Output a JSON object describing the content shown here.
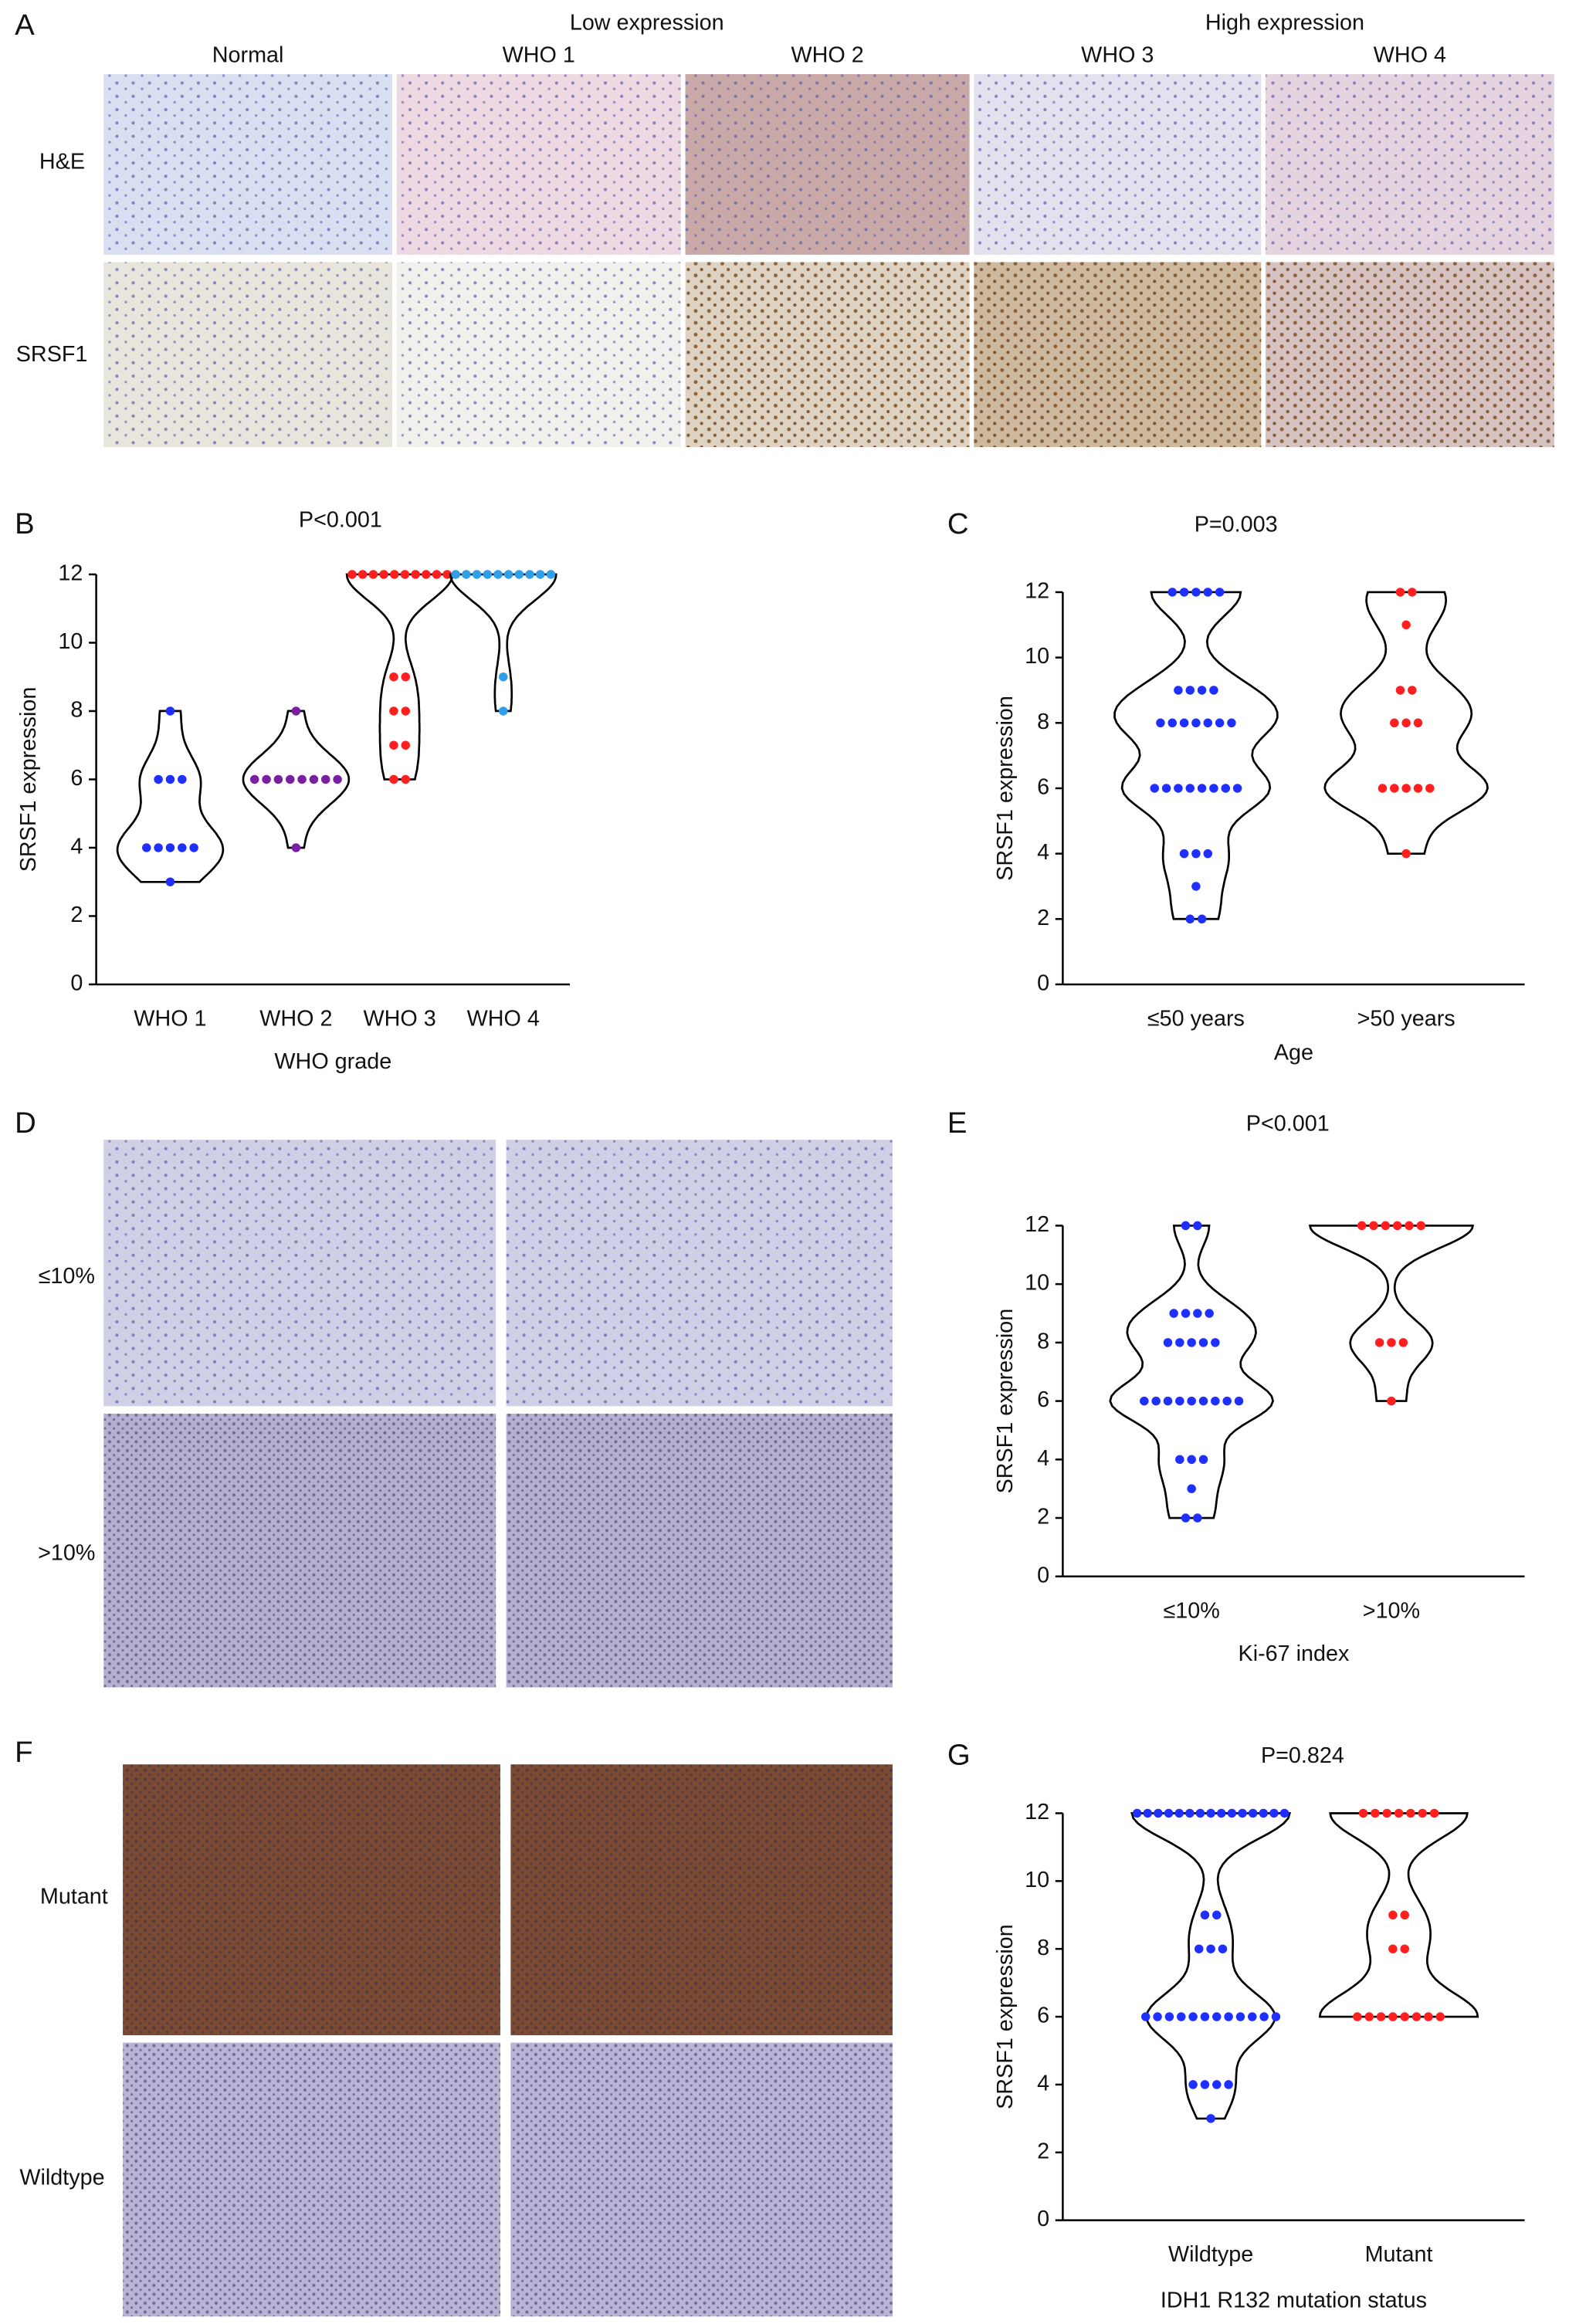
{
  "figure": {
    "panel_labels": [
      "A",
      "B",
      "C",
      "D",
      "E",
      "F",
      "G"
    ],
    "panel_a": {
      "group_labels": [
        "Low expression",
        "High expression"
      ],
      "columns": [
        "Normal",
        "WHO 1",
        "WHO 2",
        "WHO 3",
        "WHO 4"
      ],
      "rows": [
        "H&E",
        "SRSF1"
      ]
    },
    "panel_d": {
      "rows": [
        "≤10%",
        ">10%"
      ]
    },
    "panel_f": {
      "rows": [
        "Mutant",
        "Wildtype"
      ]
    }
  },
  "chart_data": [
    {
      "type": "violin",
      "title": "P<0.001",
      "x_label": "WHO grade",
      "y_label": "SRSF1 expression",
      "categories": [
        "WHO 1",
        "WHO 2",
        "WHO 3",
        "WHO 4"
      ],
      "colors": [
        "#1f2fff",
        "#7b1fa2",
        "#ff1f1f",
        "#2f9fe8"
      ],
      "points": [
        [
          8,
          6,
          6,
          6,
          4,
          4,
          4,
          4,
          4,
          3
        ],
        [
          8,
          6,
          6,
          6,
          6,
          6,
          6,
          6,
          6,
          4
        ],
        [
          12,
          12,
          12,
          12,
          12,
          12,
          12,
          12,
          12,
          12,
          9,
          9,
          8,
          8,
          7,
          7,
          6,
          6
        ],
        [
          12,
          12,
          12,
          12,
          12,
          12,
          12,
          12,
          12,
          12,
          9,
          8
        ]
      ],
      "ylim": [
        0,
        12
      ],
      "yticks": [
        0,
        2,
        4,
        6,
        8,
        10,
        12
      ]
    },
    {
      "type": "violin",
      "title": "P=0.003",
      "x_label": "Age",
      "y_label": "SRSF1 expression",
      "categories": [
        "≤50 years",
        ">50 years"
      ],
      "colors": [
        "#1f2fff",
        "#ff1f1f"
      ],
      "points": [
        [
          12,
          12,
          12,
          12,
          12,
          9,
          9,
          9,
          9,
          8,
          8,
          8,
          8,
          8,
          8,
          8,
          6,
          6,
          6,
          6,
          6,
          6,
          6,
          6,
          4,
          4,
          4,
          3,
          2,
          2
        ],
        [
          12,
          12,
          11,
          9,
          9,
          8,
          8,
          8,
          6,
          6,
          6,
          6,
          6,
          4
        ]
      ],
      "ylim": [
        0,
        12
      ],
      "yticks": [
        0,
        2,
        4,
        6,
        8,
        10,
        12
      ]
    },
    {
      "type": "violin",
      "title": "P<0.001",
      "x_label": "Ki-67 index",
      "y_label": "SRSF1 expression",
      "categories": [
        "≤10%",
        ">10%"
      ],
      "colors": [
        "#1f2fff",
        "#ff1f1f"
      ],
      "points": [
        [
          12,
          12,
          9,
          9,
          9,
          9,
          8,
          8,
          8,
          8,
          8,
          6,
          6,
          6,
          6,
          6,
          6,
          6,
          6,
          6,
          4,
          4,
          4,
          3,
          2,
          2
        ],
        [
          12,
          12,
          12,
          12,
          12,
          12,
          8,
          8,
          8,
          6
        ]
      ],
      "ylim": [
        0,
        12
      ],
      "yticks": [
        0,
        2,
        4,
        6,
        8,
        10,
        12
      ]
    },
    {
      "type": "violin",
      "title": "P=0.824",
      "x_label": "IDH1 R132 mutation status",
      "y_label": "SRSF1 expression",
      "categories": [
        "Wildtype",
        "Mutant"
      ],
      "colors": [
        "#1f2fff",
        "#ff1f1f"
      ],
      "points": [
        [
          12,
          12,
          12,
          12,
          12,
          12,
          12,
          12,
          12,
          12,
          12,
          12,
          12,
          12,
          12,
          9,
          9,
          8,
          8,
          8,
          6,
          6,
          6,
          6,
          6,
          6,
          6,
          6,
          6,
          6,
          6,
          6,
          4,
          4,
          4,
          4,
          3
        ],
        [
          12,
          12,
          12,
          12,
          12,
          12,
          12,
          9,
          9,
          8,
          8,
          6,
          6,
          6,
          6,
          6,
          6,
          6,
          6
        ]
      ],
      "ylim": [
        0,
        12
      ],
      "yticks": [
        0,
        2,
        4,
        6,
        8,
        10,
        12
      ]
    }
  ]
}
